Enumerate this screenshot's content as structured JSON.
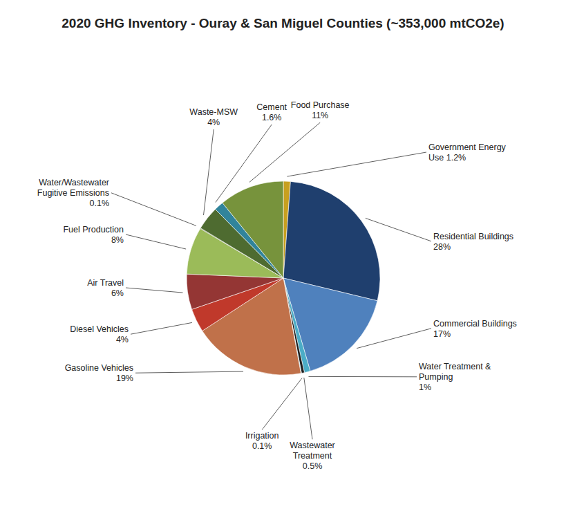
{
  "chart_data": {
    "type": "pie",
    "title": "2020 GHG Inventory - Ouray & San Miguel Counties (~353,000 mtCO2e)",
    "categories": [
      "Government Energy\nUse 1.2%",
      "Residential Buildings\n28%",
      "Commercial Buildings\n17%",
      "Water Treatment &\nPumping\n1%",
      "Wastewater\nTreatment\n0.5%",
      "Irrigation\n0.1%",
      "Gasoline Vehicles\n19%",
      "Diesel Vehicles\n4%",
      "Air Travel\n6%",
      "Fuel Production\n8%",
      "Water/Wastewater\nFugitive Emissions\n0.1%",
      "Waste-MSW\n4%",
      "Cement\n1.6%",
      "Food Purchase\n11%"
    ],
    "values": [
      1.2,
      28.0,
      17.0,
      1.0,
      0.5,
      0.1,
      19.0,
      4.0,
      6.0,
      8.0,
      0.1,
      4.0,
      1.6,
      11.0
    ],
    "colors": [
      "#C8A020",
      "#1F3F6E",
      "#4F81BD",
      "#4BACC6",
      "#1F1F1F",
      "#4BACC6",
      "#C0714A",
      "#C0392B",
      "#943634",
      "#9BBB59",
      "#4F6228",
      "#4E6B30",
      "#31849B",
      "#77933C"
    ]
  }
}
